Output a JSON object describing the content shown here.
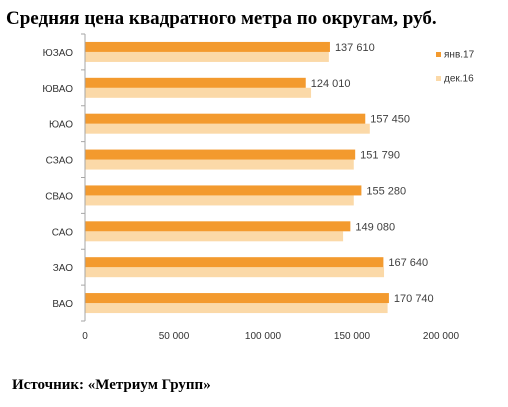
{
  "title": "Средняя цена квадратного метра  по округам, руб.",
  "source": "Источник: «Метриум Групп»",
  "chart_data": {
    "type": "bar",
    "orientation": "horizontal",
    "categories": [
      "ЮЗАО",
      "ЮВАО",
      "ЮАО",
      "СЗАО",
      "СВАО",
      "САО",
      "ЗАО",
      "ВАО"
    ],
    "series": [
      {
        "name": "янв.17",
        "color": "#f39a2e",
        "values": [
          137610,
          124010,
          157450,
          151790,
          155280,
          149080,
          167640,
          170740
        ],
        "labels": [
          "137 610",
          "124 010",
          "157 450",
          "151 790",
          "155 280",
          "149 080",
          "167 640",
          "170 740"
        ]
      },
      {
        "name": "дек.16",
        "color": "#fbd9a8",
        "values": [
          137000,
          127000,
          160000,
          151000,
          151000,
          145000,
          168000,
          170000
        ]
      }
    ],
    "xlim": [
      0,
      200000
    ],
    "xticks": [
      0,
      50000,
      100000,
      150000,
      200000
    ],
    "xtick_labels": [
      "0",
      "50 000",
      "100 000",
      "150 000",
      "200 000"
    ],
    "grid": false,
    "legend_position": "right"
  }
}
